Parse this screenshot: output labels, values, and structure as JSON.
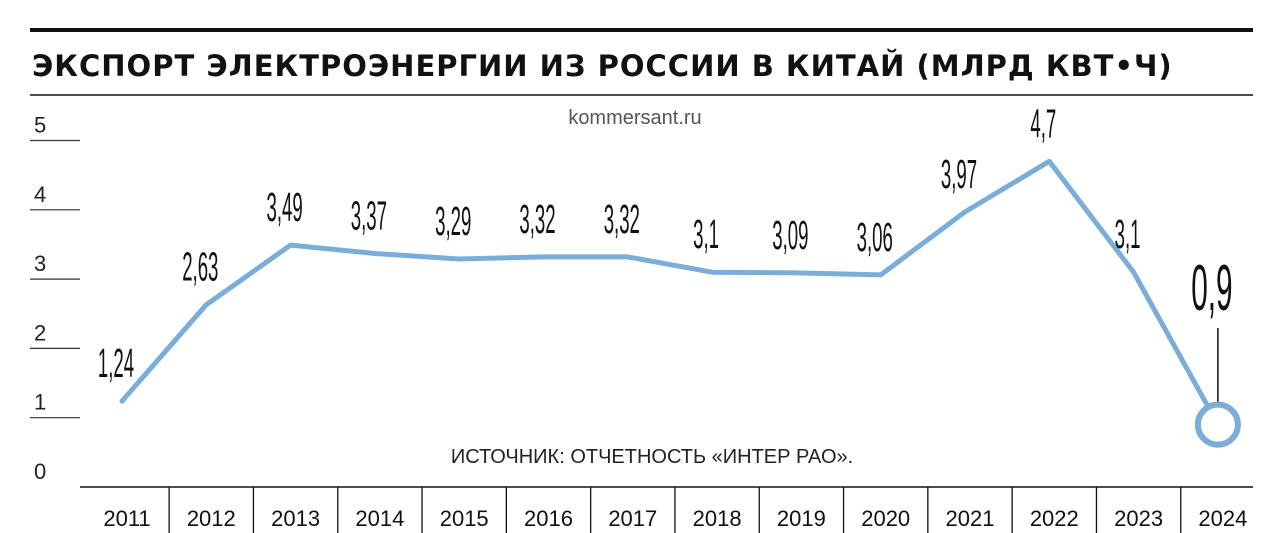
{
  "chart_data": {
    "type": "line",
    "title": "ЭКСПОРТ ЭЛЕКТРОЭНЕРГИИ ИЗ РОССИИ В КИТАЙ (МЛРД КВТ•Ч)",
    "source_site": "kommersant.ru",
    "note": "ИСТОЧНИК: ОТЧЕТНОСТЬ «ИНТЕР РАО».",
    "categories": [
      "2011",
      "2012",
      "2013",
      "2014",
      "2015",
      "2016",
      "2017",
      "2018",
      "2019",
      "2020",
      "2021",
      "2022",
      "2023",
      "2024"
    ],
    "values": [
      1.24,
      2.63,
      3.49,
      3.37,
      3.29,
      3.32,
      3.32,
      3.1,
      3.09,
      3.06,
      3.97,
      4.7,
      3.1,
      0.9
    ],
    "value_labels": [
      "1,24",
      "2,63",
      "3,49",
      "3,37",
      "3,29",
      "3,32",
      "3,32",
      "3,1",
      "3,09",
      "3,06",
      "3,97",
      "4,7",
      "3,1",
      "0,9"
    ],
    "yticks": [
      "0",
      "1",
      "2",
      "3",
      "4",
      "5"
    ],
    "ylim": [
      0,
      5
    ],
    "line_color": "#7aaed8",
    "highlight_index": 13,
    "grid": false
  }
}
